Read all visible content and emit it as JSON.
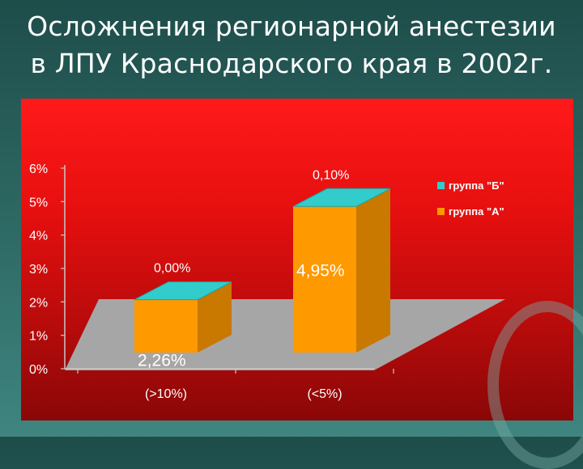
{
  "slide": {
    "title_line1": "Осложнения регионарной анестезии",
    "title_line2": "в ЛПУ Краснодарского края в 2002г."
  },
  "colors": {
    "group_a": "#ff9900",
    "group_a_side": "#c97800",
    "group_b": "#33cccc",
    "floor": "#a6a6a6",
    "axis": "#c8c8c8"
  },
  "chart_data": {
    "type": "bar",
    "categories": [
      "(>10%)",
      "(<5%)"
    ],
    "series": [
      {
        "name": "группа \"А\"",
        "values": [
          2.26,
          4.95
        ],
        "labels": [
          "2,26%",
          "4,95%"
        ]
      },
      {
        "name": "группа \"Б\"",
        "values": [
          0.0,
          0.1
        ],
        "labels": [
          "0,00%",
          "0,10%"
        ]
      }
    ],
    "ylim": [
      0,
      6
    ],
    "yticks": [
      0,
      1,
      2,
      3,
      4,
      5,
      6
    ],
    "ytick_labels": [
      "0%",
      "1%",
      "2%",
      "3%",
      "4%",
      "5%",
      "6%"
    ],
    "stacked": true,
    "legend": "right",
    "three_d": true
  }
}
